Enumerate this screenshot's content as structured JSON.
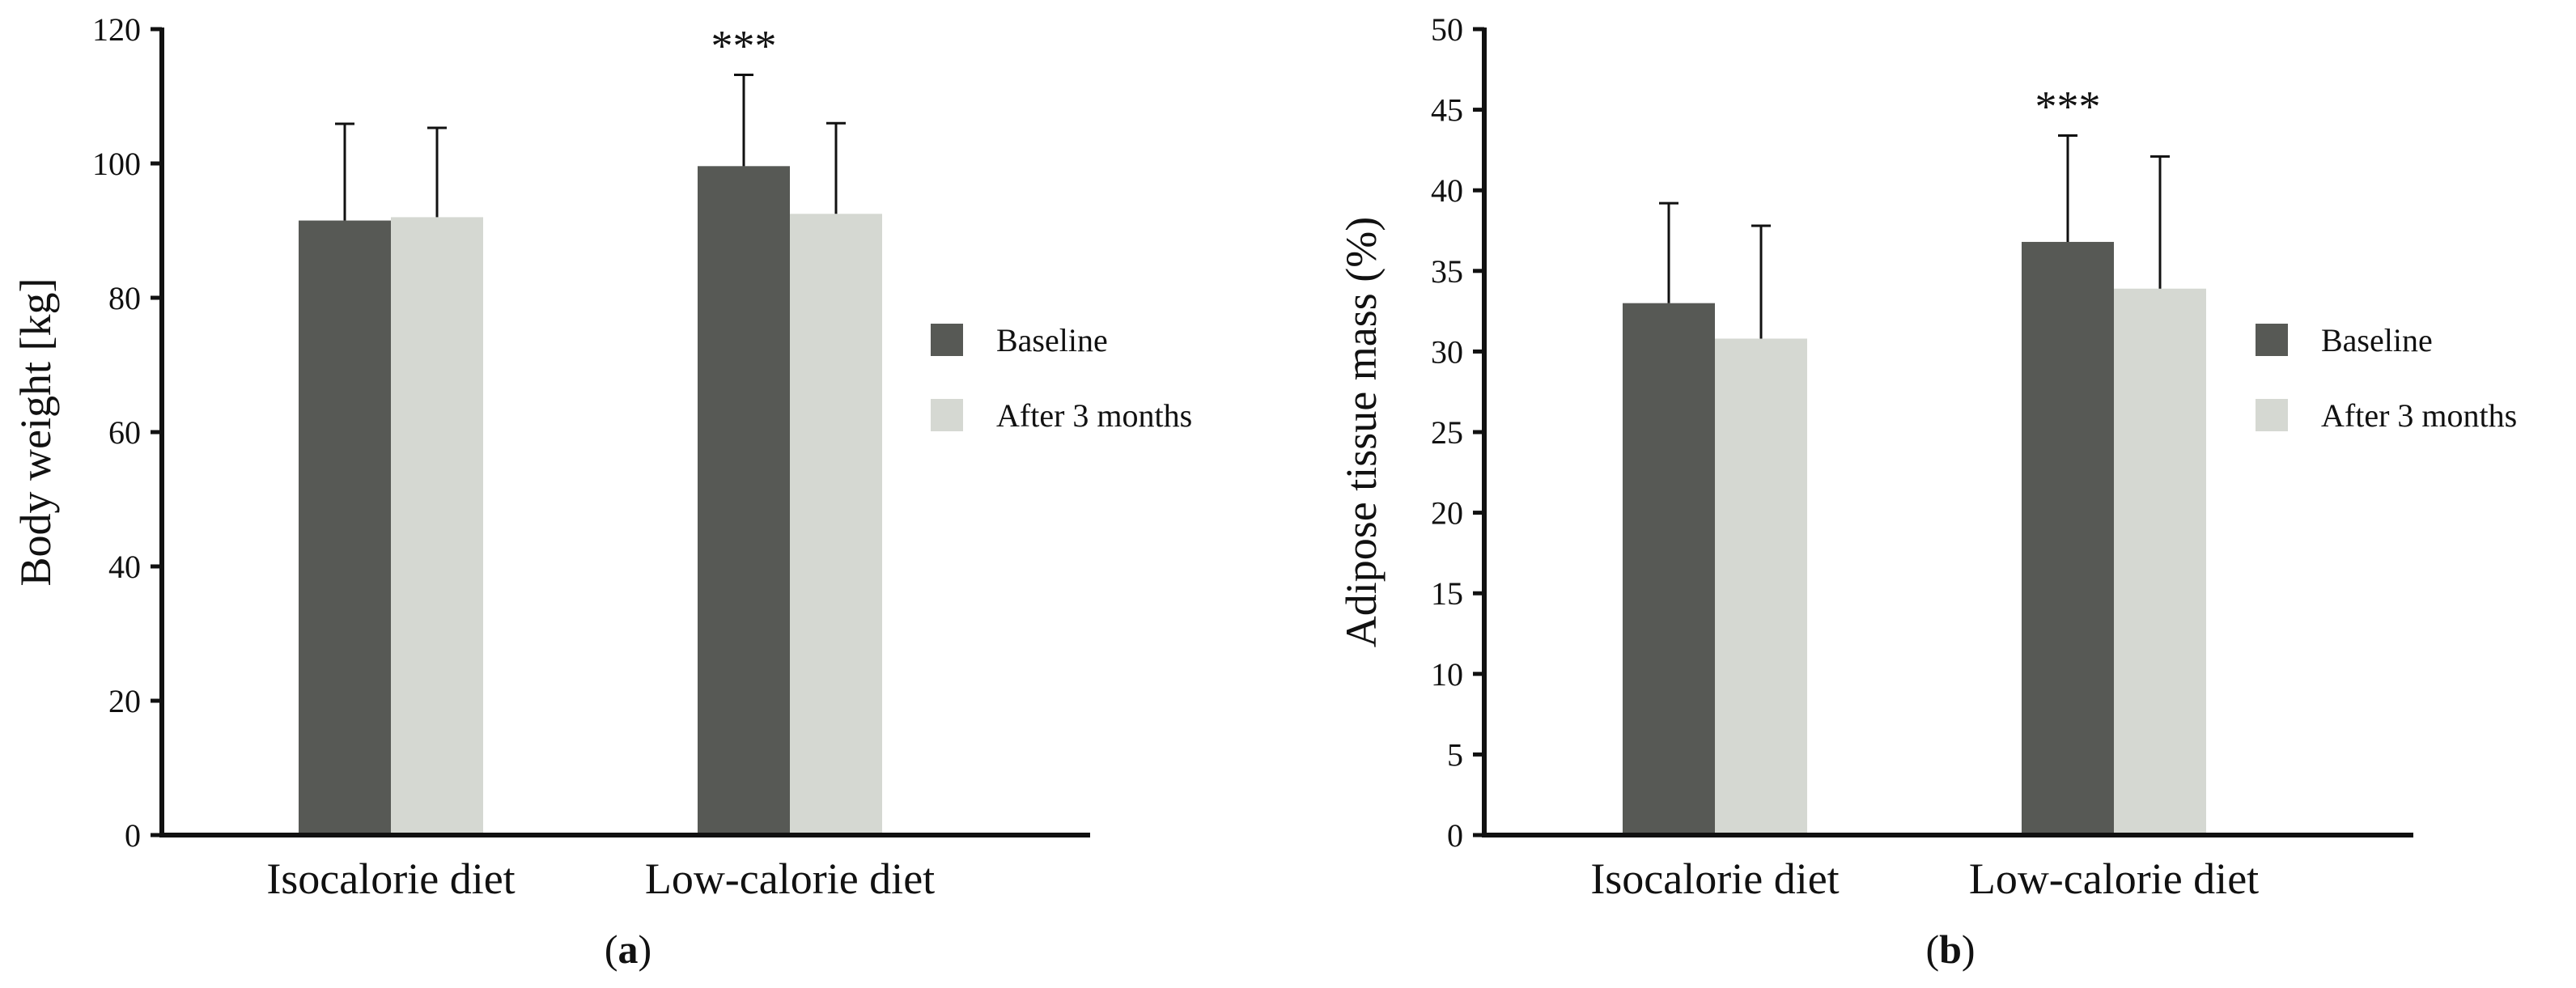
{
  "figure": {
    "panels": [
      "a",
      "b"
    ]
  },
  "chart_data": [
    {
      "type": "bar",
      "panel_label": "a",
      "title": "",
      "xlabel": "",
      "ylabel": "Body weight [kg]",
      "ylim": [
        0,
        120
      ],
      "yticks": [
        0,
        20,
        40,
        60,
        80,
        100,
        120
      ],
      "ytick_labels": [
        "0",
        "20",
        "40",
        "60",
        "80",
        "100",
        "120"
      ],
      "categories": [
        "Isocalorie diet",
        "Low-calorie diet"
      ],
      "series": [
        {
          "name": "Baseline",
          "color": "#575955",
          "values": [
            91.5,
            99.6
          ],
          "errors": [
            14.4,
            13.6
          ]
        },
        {
          "name": "After 3 months",
          "color": "#d5d8d2",
          "values": [
            92.0,
            92.5
          ],
          "errors": [
            13.3,
            13.5
          ]
        }
      ],
      "annotations": [
        {
          "category": "Low-calorie diet",
          "text": "***"
        }
      ],
      "legend": {
        "placement": "right",
        "entries": [
          "Baseline",
          "After 3 months"
        ]
      }
    },
    {
      "type": "bar",
      "panel_label": "b",
      "title": "",
      "xlabel": "",
      "ylabel": "Adipose tissue mass (%)",
      "ylim": [
        0,
        50
      ],
      "yticks": [
        0,
        5,
        10,
        15,
        20,
        25,
        30,
        35,
        40,
        45,
        50
      ],
      "ytick_labels": [
        "0",
        "5",
        "10",
        "15",
        "20",
        "25",
        "30",
        "35",
        "40",
        "45",
        "50"
      ],
      "categories": [
        "Isocalorie diet",
        "Low-calorie diet"
      ],
      "series": [
        {
          "name": "Baseline",
          "color": "#575955",
          "values": [
            33.0,
            36.8
          ],
          "errors": [
            6.2,
            6.6
          ]
        },
        {
          "name": "After 3 months",
          "color": "#d5d8d2",
          "values": [
            30.8,
            33.9
          ],
          "errors": [
            7.0,
            8.2
          ]
        }
      ],
      "annotations": [
        {
          "category": "Low-calorie diet",
          "text": "***"
        }
      ],
      "legend": {
        "placement": "right",
        "entries": [
          "Baseline",
          "After 3 months"
        ]
      }
    }
  ]
}
